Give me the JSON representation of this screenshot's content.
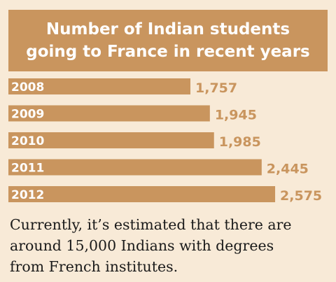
{
  "chart_data": {
    "type": "bar",
    "orientation": "horizontal",
    "title_lines": [
      "Number of Indian students",
      "going to France in recent years"
    ],
    "categories": [
      "2008",
      "2009",
      "2010",
      "2011",
      "2012"
    ],
    "values": [
      1757,
      1945,
      1985,
      2445,
      2575
    ],
    "value_labels": [
      "1,757",
      "1,945",
      "1,985",
      "2,445",
      "2,575"
    ],
    "xlabel": "",
    "ylabel": "",
    "grid": false,
    "legend": "none"
  },
  "note_lines": [
    "Currently, it’s estimated that there are",
    "around 15,000 Indians with degrees",
    "from French institutes."
  ],
  "colors": {
    "background": "#f8ead7",
    "accent": "#c9955e",
    "text": "#1a1a1a"
  }
}
